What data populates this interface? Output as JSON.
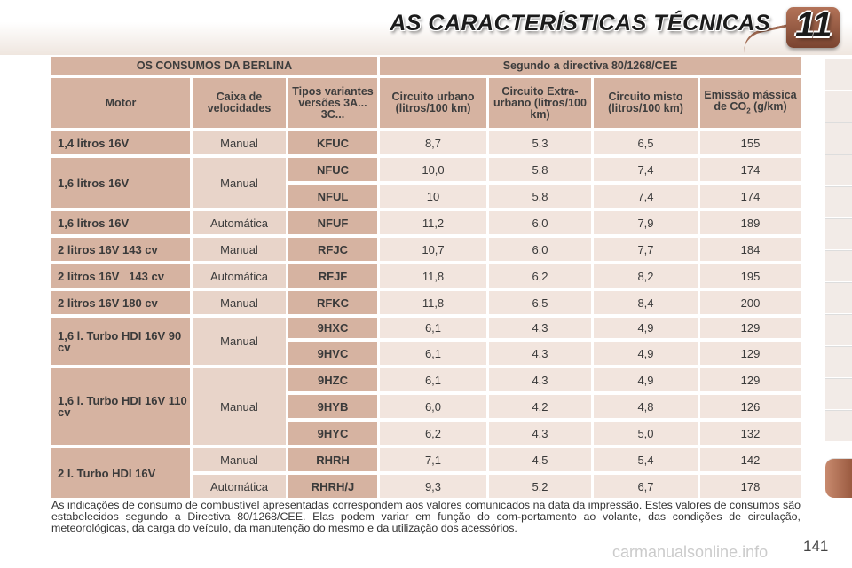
{
  "header": {
    "title": "AS CARACTERÍSTICAS TÉCNICAS",
    "chapter": "11"
  },
  "table": {
    "group_header_left": "OS CONSUMOS DA BERLINA",
    "group_header_right": "Segundo a directiva 80/1268/CEE",
    "columns": {
      "motor": "Motor",
      "gearbox": "Caixa de velocidades",
      "type": "Tipos variantes versões 3A... 3C...",
      "urban": "Circuito urbano (litros/100 km)",
      "extra_urban": "Circuito Extra-urbano (litros/100 km)",
      "mixed": "Circuito misto (litros/100 km)",
      "co2_a": "Emissão mássica de CO",
      "co2_sub": "2",
      "co2_b": " (g/km)"
    },
    "motors": [
      "1,4 litros 16V",
      "1,6 litros 16V",
      "1,6 litros 16V",
      "2 litros 16V 143 cv",
      "2 litros 16V   143 cv",
      "2 litros 16V 180 cv",
      "1,6 l. Turbo HDI 16V 90 cv",
      "1,6 l. Turbo HDI 16V 110 cv",
      "2 l. Turbo HDI 16V"
    ],
    "gearboxes": [
      "Manual",
      "Manual",
      "Automática",
      "Manual",
      "Automática",
      "Manual",
      "Manual",
      "Manual",
      "Manual",
      "Automática"
    ],
    "rows": [
      {
        "type": "KFUC",
        "urban": "8,7",
        "extra": "5,3",
        "mixed": "6,5",
        "co2": "155"
      },
      {
        "type": "NFUC",
        "urban": "10,0",
        "extra": "5,8",
        "mixed": "7,4",
        "co2": "174"
      },
      {
        "type": "NFUL",
        "urban": "10",
        "extra": "5,8",
        "mixed": "7,4",
        "co2": "174"
      },
      {
        "type": "NFUF",
        "urban": "11,2",
        "extra": "6,0",
        "mixed": "7,9",
        "co2": "189"
      },
      {
        "type": "RFJC",
        "urban": "10,7",
        "extra": "6,0",
        "mixed": "7,7",
        "co2": "184"
      },
      {
        "type": "RFJF",
        "urban": "11,8",
        "extra": "6,2",
        "mixed": "8,2",
        "co2": "195"
      },
      {
        "type": "RFKC",
        "urban": "11,8",
        "extra": "6,5",
        "mixed": "8,4",
        "co2": "200"
      },
      {
        "type": "9HXC",
        "urban": "6,1",
        "extra": "4,3",
        "mixed": "4,9",
        "co2": "129"
      },
      {
        "type": "9HVC",
        "urban": "6,1",
        "extra": "4,3",
        "mixed": "4,9",
        "co2": "129"
      },
      {
        "type": "9HZC",
        "urban": "6,1",
        "extra": "4,3",
        "mixed": "4,9",
        "co2": "129"
      },
      {
        "type": "9HYB",
        "urban": "6,0",
        "extra": "4,2",
        "mixed": "4,8",
        "co2": "126"
      },
      {
        "type": "9HYC",
        "urban": "6,2",
        "extra": "4,3",
        "mixed": "5,0",
        "co2": "132"
      },
      {
        "type": "RHRH",
        "urban": "7,1",
        "extra": "4,5",
        "mixed": "5,4",
        "co2": "142"
      },
      {
        "type": "RHRH/J",
        "urban": "9,3",
        "extra": "5,2",
        "mixed": "6,7",
        "co2": "178"
      }
    ]
  },
  "footnote": "As indicações de consumo de combustível apresentadas correspondem aos valores comunicados na data da impressão. Estes valores de consumos são estabelecidos segundo a Directiva 80/1268/CEE. Elas podem variar em função do com-portamento ao volante, das condições de circulação, meteorológicas, da carga do veículo, da manutenção do mesmo e da utilização dos acessórios.",
  "page_number": "141",
  "watermark": "carmanualsonline.info"
}
